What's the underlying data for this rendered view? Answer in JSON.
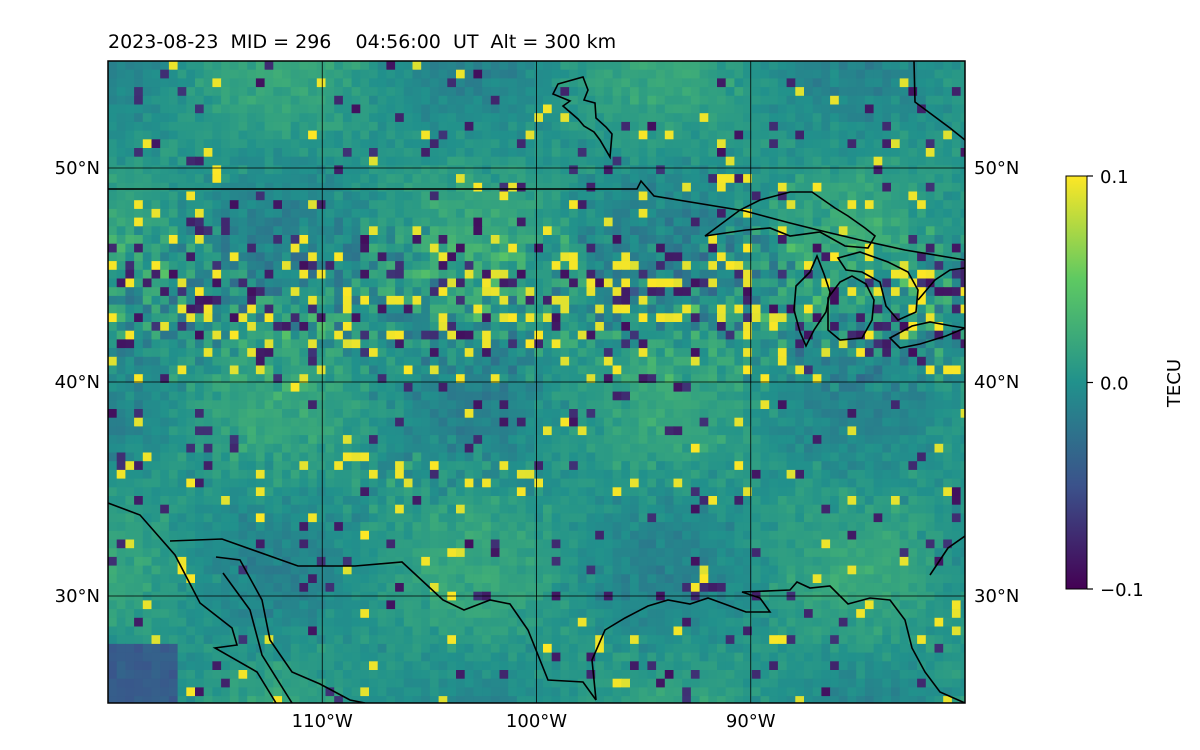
{
  "title": "2023-08-23  MID = 296    04:56:00  UT  Alt = 300 km",
  "map": {
    "lon_range": [
      -120,
      -80
    ],
    "lat_range": [
      25,
      55
    ],
    "lon_ticks": [
      {
        "value": -110,
        "label": "110°W"
      },
      {
        "value": -100,
        "label": "100°W"
      },
      {
        "value": -90,
        "label": "90°W"
      }
    ],
    "lat_ticks": [
      {
        "value": 30,
        "label": "30°N"
      },
      {
        "value": 40,
        "label": "40°N"
      },
      {
        "value": 50,
        "label": "50°N"
      }
    ],
    "gridlines": true
  },
  "colorbar": {
    "label": "TECU",
    "min": -0.1,
    "max": 0.1,
    "ticks": [
      {
        "value": 0.1,
        "label": "0.1"
      },
      {
        "value": 0.0,
        "label": "0.0"
      },
      {
        "value": -0.1,
        "label": "−0.1"
      }
    ],
    "colormap": "viridis",
    "colors": [
      "#440154",
      "#3b528b",
      "#21918c",
      "#5ec962",
      "#fde725"
    ]
  }
}
